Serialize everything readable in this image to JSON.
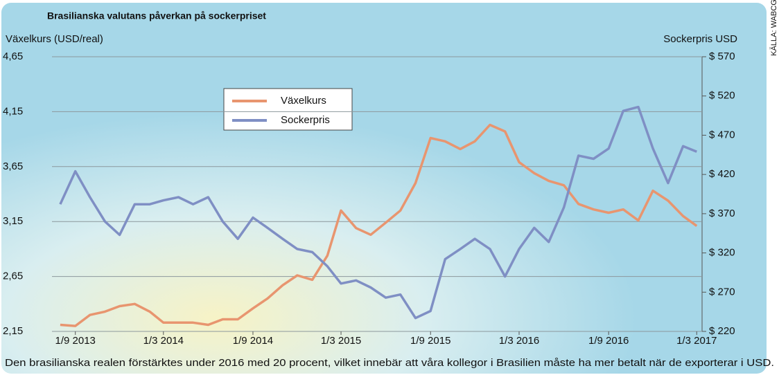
{
  "chart_data": {
    "type": "line",
    "title": "Brasilianska valutans påverkan på sockerpriset",
    "y_label": "Växelkurs (USD/real)",
    "y2_label": "Sockerpris USD",
    "caption": "Den brasilianska realen förstärktes under 2016 med 20 procent, vilket innebär att våra kollegor i Brasilien måste ha mer betalt när de exporterar i USD.",
    "source": "KÄLLA: WABCG",
    "legend": "upper left",
    "x": [
      "2013-08-01",
      "2013-09-01",
      "2013-10-01",
      "2013-11-01",
      "2013-12-01",
      "2014-01-01",
      "2014-02-01",
      "2014-03-01",
      "2014-04-01",
      "2014-05-01",
      "2014-06-01",
      "2014-07-01",
      "2014-08-01",
      "2014-09-01",
      "2014-10-01",
      "2014-11-01",
      "2014-12-01",
      "2015-01-01",
      "2015-02-01",
      "2015-03-01",
      "2015-04-01",
      "2015-05-01",
      "2015-06-01",
      "2015-07-01",
      "2015-08-01",
      "2015-09-01",
      "2015-10-01",
      "2015-11-01",
      "2015-12-01",
      "2016-01-01",
      "2016-02-01",
      "2016-03-01",
      "2016-04-01",
      "2016-05-01",
      "2016-06-01",
      "2016-07-01",
      "2016-08-01",
      "2016-09-01",
      "2016-10-01",
      "2016-11-01",
      "2016-12-01",
      "2017-01-01",
      "2017-02-01",
      "2017-03-01"
    ],
    "xlim": [
      "2013-07-15",
      "2017-03-12"
    ],
    "xticks": [
      {
        "value": "2013-09-01",
        "label": "1/9 2013"
      },
      {
        "value": "2014-03-01",
        "label": "1/3 2014"
      },
      {
        "value": "2014-09-01",
        "label": "1/9 2014"
      },
      {
        "value": "2015-03-01",
        "label": "1/3 2015"
      },
      {
        "value": "2015-09-01",
        "label": "1/9 2015"
      },
      {
        "value": "2016-03-01",
        "label": "1/3 2016"
      },
      {
        "value": "2016-09-01",
        "label": "1/9 2016"
      },
      {
        "value": "2017-03-01",
        "label": "1/3 2017"
      }
    ],
    "ylim": [
      2.15,
      4.65
    ],
    "yticks": [
      {
        "value": 2.15,
        "label": "2,15"
      },
      {
        "value": 2.65,
        "label": "2,65"
      },
      {
        "value": 3.15,
        "label": "3,15"
      },
      {
        "value": 3.65,
        "label": "3,65"
      },
      {
        "value": 4.15,
        "label": "4,15"
      },
      {
        "value": 4.65,
        "label": "4,65"
      }
    ],
    "y2lim": [
      220,
      570
    ],
    "y2ticks": [
      {
        "value": 220,
        "label": "$ 220"
      },
      {
        "value": 270,
        "label": "$ 270"
      },
      {
        "value": 320,
        "label": "$ 320"
      },
      {
        "value": 370,
        "label": "$ 370"
      },
      {
        "value": 420,
        "label": "$ 420"
      },
      {
        "value": 470,
        "label": "$ 470"
      },
      {
        "value": 520,
        "label": "$ 520"
      },
      {
        "value": 570,
        "label": "$ 570"
      }
    ],
    "grid": true,
    "series": [
      {
        "name": "Växelkurs",
        "color": "#e8956f",
        "axis": "y",
        "values": [
          2.21,
          2.2,
          2.3,
          2.33,
          2.38,
          2.4,
          2.33,
          2.23,
          2.23,
          2.23,
          2.21,
          2.26,
          2.26,
          2.36,
          2.45,
          2.57,
          2.66,
          2.62,
          2.84,
          3.25,
          3.09,
          3.03,
          3.14,
          3.25,
          3.5,
          3.91,
          3.88,
          3.81,
          3.88,
          4.03,
          3.97,
          3.69,
          3.59,
          3.52,
          3.48,
          3.31,
          3.26,
          3.23,
          3.26,
          3.16,
          3.43,
          3.34,
          3.2,
          3.11
        ]
      },
      {
        "name": "Sockerpris",
        "color": "#7f8fc4",
        "axis": "y2",
        "values": [
          382,
          424,
          391,
          360,
          343,
          382,
          382,
          387,
          391,
          382,
          391,
          360,
          338,
          365,
          352,
          338,
          325,
          321,
          303,
          281,
          285,
          276,
          263,
          267,
          237,
          246,
          312,
          325,
          338,
          325,
          290,
          325,
          352,
          334,
          378,
          444,
          440,
          453,
          501,
          506,
          453,
          409,
          456,
          449
        ]
      }
    ]
  }
}
